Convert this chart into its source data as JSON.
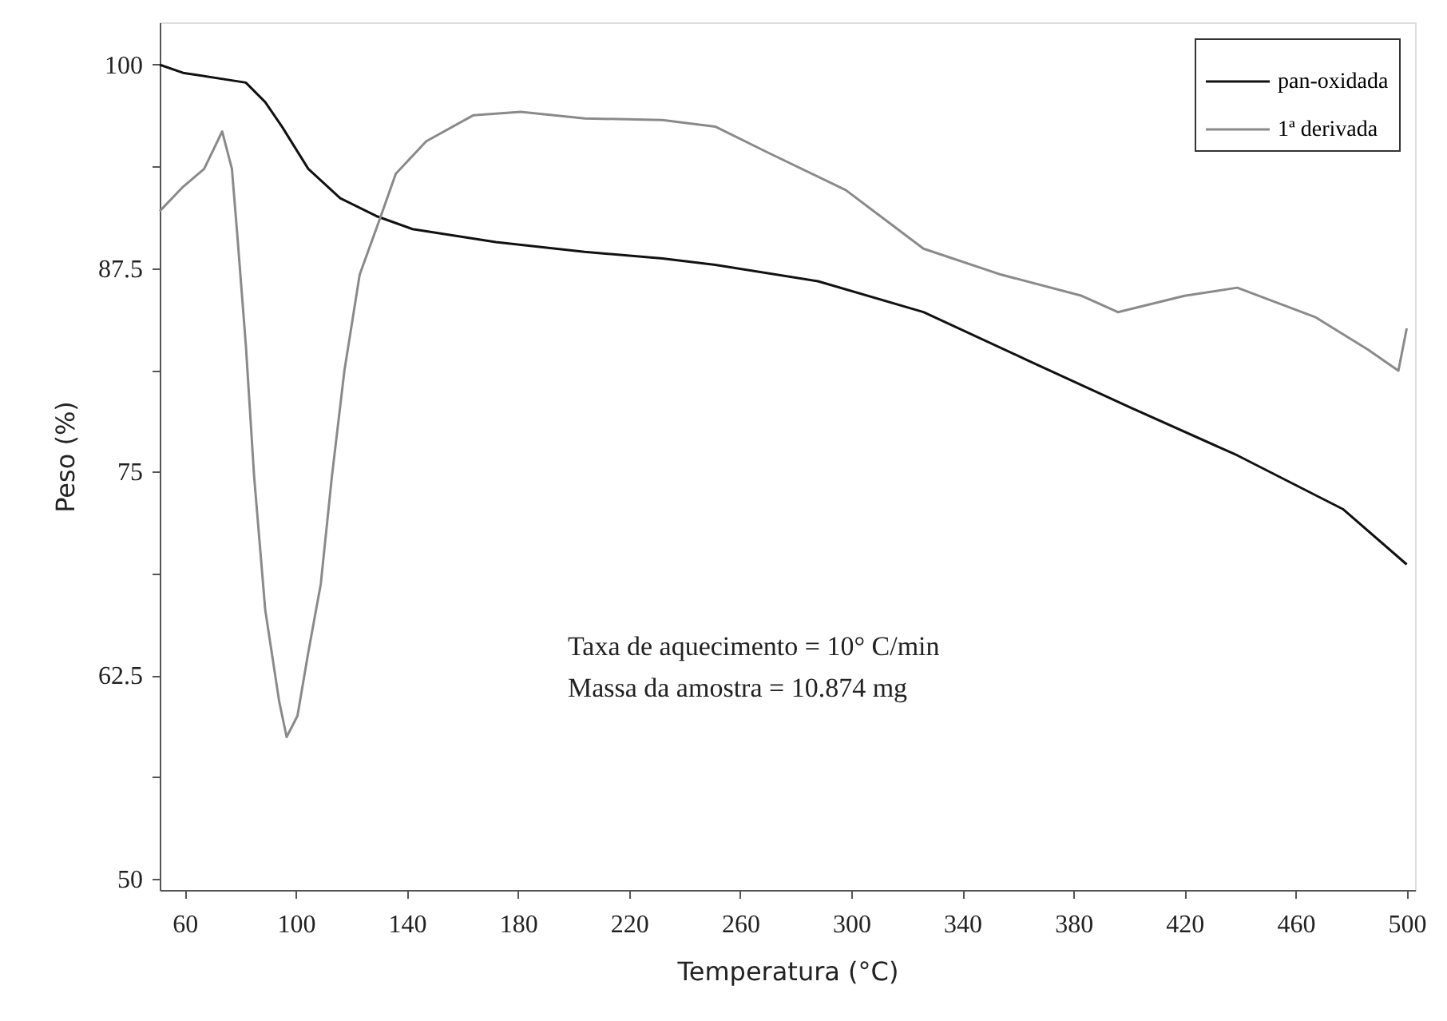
{
  "chart_data": {
    "type": "line",
    "xlabel": "Temperatura (°C)",
    "ylabel": "Peso (%)",
    "xlim": [
      51,
      503
    ],
    "xticks": [
      60,
      100,
      140,
      180,
      220,
      260,
      300,
      340,
      380,
      420,
      460,
      500
    ],
    "ylim": [
      49.3,
      102.6
    ],
    "yticks": [
      50,
      {
        "value": 56.25,
        "label": null
      },
      62.5,
      {
        "value": 68.75,
        "label": null
      },
      75,
      {
        "value": 81.25,
        "label": null
      },
      87.5,
      {
        "value": 93.75,
        "label": null
      },
      100
    ],
    "grid": false,
    "legend": "top right",
    "line_style": "solid",
    "marker": "none",
    "series": [
      {
        "name": "pan-oxidada",
        "color": "#111111",
        "x": [
          51,
          59.4,
          82,
          89,
          95,
          104.5,
          116,
          129,
          142,
          172,
          204,
          232,
          251,
          288,
          326,
          364,
          401,
          439,
          477,
          500
        ],
        "values": [
          100,
          99.5,
          98.9,
          97.7,
          96.2,
          93.6,
          91.8,
          90.7,
          89.9,
          89.1,
          88.5,
          88.1,
          87.7,
          86.7,
          84.8,
          81.8,
          78.9,
          76.0,
          72.7,
          69.3
        ]
      },
      {
        "name": "1ª derivada",
        "color": "#8a8a8a",
        "x": [
          51,
          59.4,
          67,
          73.5,
          77,
          79,
          82,
          85,
          89,
          94,
          96.7,
          100.6,
          104.5,
          109,
          113,
          117.5,
          123,
          130,
          136,
          147,
          164,
          181,
          204,
          232,
          251,
          270,
          298,
          326,
          354,
          383,
          396,
          420,
          439,
          467,
          486,
          497,
          500
        ],
        "values": [
          91.0,
          92.5,
          93.6,
          95.9,
          93.6,
          89.4,
          82.8,
          74.7,
          66.5,
          60.9,
          58.7,
          60.0,
          63.9,
          68.1,
          74.7,
          81.2,
          87.1,
          90.4,
          93.3,
          95.3,
          96.9,
          97.1,
          96.7,
          96.6,
          96.2,
          94.6,
          92.3,
          88.7,
          87.1,
          85.8,
          84.8,
          85.8,
          86.3,
          84.5,
          82.5,
          81.2,
          83.8
        ]
      }
    ],
    "annotations": [
      "Taxa de aquecimento = 10° C/min",
      "Massa da amostra = 10.874 mg"
    ]
  }
}
